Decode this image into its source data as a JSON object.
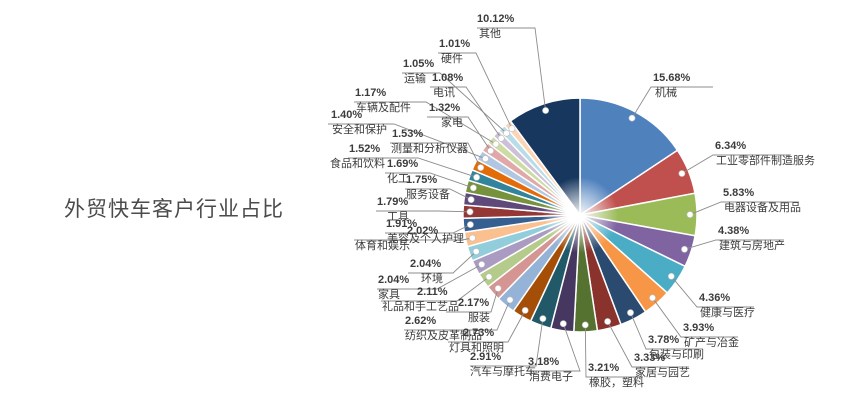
{
  "title": "外贸快车客户行业占比",
  "chart_data": {
    "type": "pie",
    "title": "外贸快车客户行业占比",
    "legend_position": "none",
    "label_style": "outside labels with leader lines, percent above underlined category name",
    "start_angle": "12 o'clock, clockwise, sorted descending",
    "total": 100.0,
    "slices": [
      {
        "label": "机械",
        "value": 15.68,
        "display": "15.68%",
        "color": "#4F81BD"
      },
      {
        "label": "工业零部件制造服务",
        "value": 6.34,
        "display": "6.34%",
        "color": "#C0504D"
      },
      {
        "label": "电器设备及用品",
        "value": 5.83,
        "display": "5.83%",
        "color": "#9BBB59"
      },
      {
        "label": "建筑与房地产",
        "value": 4.38,
        "display": "4.38%",
        "color": "#8064A2"
      },
      {
        "label": "健康与医疗",
        "value": 4.36,
        "display": "4.36%",
        "color": "#4BACC6"
      },
      {
        "label": "矿产与冶金",
        "value": 3.93,
        "display": "3.93%",
        "color": "#F79646"
      },
      {
        "label": "包装与印刷",
        "value": 3.78,
        "display": "3.78%",
        "color": "#2B4A6F"
      },
      {
        "label": "家居与园艺",
        "value": 3.33,
        "display": "3.33%",
        "color": "#8A322C"
      },
      {
        "label": "橡胶，塑料",
        "value": 3.21,
        "display": "3.21%",
        "color": "#567230"
      },
      {
        "label": "消费电子",
        "value": 3.18,
        "display": "3.18%",
        "color": "#463760"
      },
      {
        "label": "汽车与摩托车",
        "value": 2.91,
        "display": "2.91%",
        "color": "#215968"
      },
      {
        "label": "灯具和照明",
        "value": 2.73,
        "display": "2.73%",
        "color": "#A44E08"
      },
      {
        "label": "纺织及皮革制品",
        "value": 2.62,
        "display": "2.62%",
        "color": "#95B3D7"
      },
      {
        "label": "服装",
        "value": 2.17,
        "display": "2.17%",
        "color": "#D49593"
      },
      {
        "label": "礼品和手工艺品",
        "value": 2.11,
        "display": "2.11%",
        "color": "#B5CB8B"
      },
      {
        "label": "家具",
        "value": 2.04,
        "display": "2.04%",
        "color": "#A99BC1"
      },
      {
        "label": "环境",
        "value": 2.04,
        "display": "2.04%",
        "color": "#92CDDC"
      },
      {
        "label": "体育和娱乐",
        "value": 2.02,
        "display": "2.02%",
        "color": "#FAC08F"
      },
      {
        "label": "美容及个人护理",
        "value": 1.91,
        "display": "1.91%",
        "color": "#365F91"
      },
      {
        "label": "工具",
        "value": 1.79,
        "display": "1.79%",
        "color": "#953735"
      },
      {
        "label": "服务设备",
        "value": 1.75,
        "display": "1.75%",
        "color": "#5F497A"
      },
      {
        "label": "化工",
        "value": 1.69,
        "display": "1.69%",
        "color": "#76923C"
      },
      {
        "label": "食品和饮料",
        "value": 1.52,
        "display": "1.52%",
        "color": "#31849B"
      },
      {
        "label": "测量和分析仪器",
        "value": 1.53,
        "display": "1.53%",
        "color": "#E36C09"
      },
      {
        "label": "安全和保护",
        "value": 1.4,
        "display": "1.40%",
        "color": "#B0C6E1"
      },
      {
        "label": "家电",
        "value": 1.32,
        "display": "1.32%",
        "color": "#E0A9A7"
      },
      {
        "label": "车辆及配件",
        "value": 1.17,
        "display": "1.17%",
        "color": "#CDDCA5"
      },
      {
        "label": "电讯",
        "value": 1.08,
        "display": "1.08%",
        "color": "#CCC1D9"
      },
      {
        "label": "运输",
        "value": 1.05,
        "display": "1.05%",
        "color": "#B7DDE8"
      },
      {
        "label": "硬件",
        "value": 1.01,
        "display": "1.01%",
        "color": "#FBD5B5"
      },
      {
        "label": "其他",
        "value": 10.12,
        "display": "10.12%",
        "color": "#17375E"
      }
    ]
  }
}
